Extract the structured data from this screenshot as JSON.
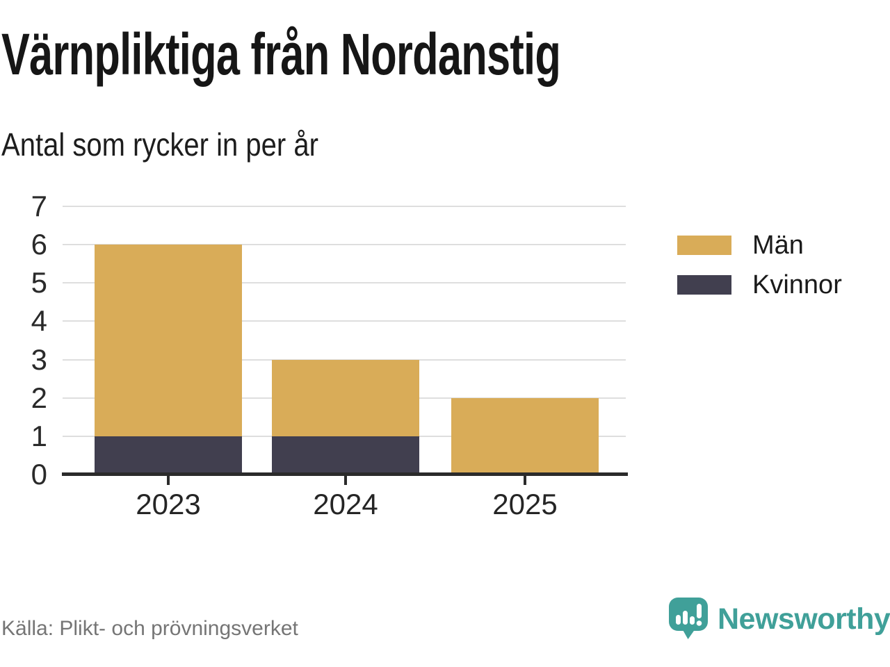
{
  "header": {
    "title": "Värnpliktiga från Nordanstig",
    "subtitle": "Antal som rycker in per år"
  },
  "chart_data": {
    "type": "bar",
    "stacked": true,
    "title": "Värnpliktiga från Nordanstig",
    "subtitle": "Antal som rycker in per år",
    "categories": [
      "2023",
      "2024",
      "2025"
    ],
    "series": [
      {
        "name": "Män",
        "color": "#D9AC58",
        "values": [
          5,
          2,
          2
        ]
      },
      {
        "name": "Kvinnor",
        "color": "#413F4F",
        "values": [
          1,
          1,
          0
        ]
      }
    ],
    "stack_bottom_series": "Kvinnor",
    "totals": [
      6,
      3,
      2
    ],
    "ylim": [
      0,
      7
    ],
    "yticks": [
      0,
      1,
      2,
      3,
      4,
      5,
      6,
      7
    ],
    "grid": "horizontal",
    "legend_position": "right",
    "grid_color": "#dedede",
    "axis_color": "#2b2b2b"
  },
  "footer": {
    "source": "Källa: Plikt- och prövningsverket",
    "brand": "Newsworthy",
    "brand_color": "#40A099"
  }
}
